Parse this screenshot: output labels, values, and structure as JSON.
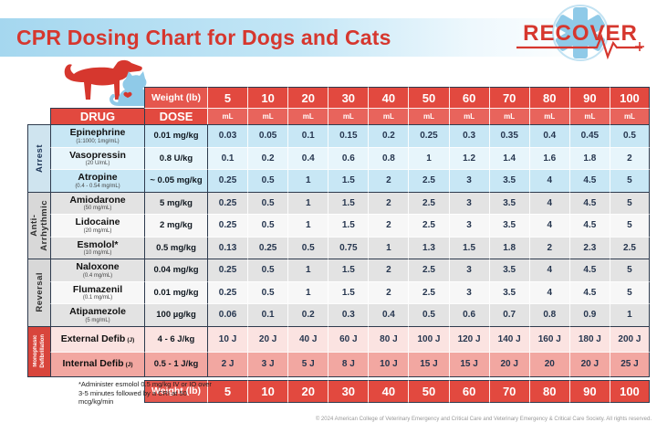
{
  "header": {
    "title": "CPR Dosing Chart for Dogs and Cats"
  },
  "logo": {
    "text": "RECOVER",
    "icon": "star-of-life-with-ekg-line"
  },
  "icons": {
    "dog": "red-dog-silhouette",
    "cat": "blue-cat-silhouette",
    "heart": "small-red-heart"
  },
  "footnote": {
    "text": "*Administer esmolol 0.5 mg/kg IV or IO over 3-5 minutes followed by a CRI at 50 mcg/kg/min"
  },
  "copyright": {
    "text": "© 2024 American College of Veterinary Emergency and Critical Care and Veterinary Emergency & Critical Care Society. All rights reserved."
  },
  "colors": {
    "title_red": "#d6372e",
    "header_red": "#e2493f",
    "unit_row_red": "#e8645c",
    "row_blue_dark": "#c8e7f5",
    "row_blue_light": "#e7f5fb",
    "row_gray_dark": "#e3e3e3",
    "row_gray_light": "#f7f7f7",
    "defib_pink_light": "#fbe3e1",
    "defib_pink_dark": "#f2a7a1",
    "section_red": "#d8453c",
    "logo_blue": "#8fcae8",
    "border_dark": "#2e3b4e"
  },
  "chart_data": {
    "type": "table",
    "title": "CPR Dosing Chart for Dogs and Cats",
    "weight_header_label": "Weight (lb)",
    "weights_lb": [
      "5",
      "10",
      "20",
      "30",
      "40",
      "50",
      "60",
      "70",
      "80",
      "90",
      "100"
    ],
    "drug_col_header": "DRUG",
    "dose_col_header": "DOSE",
    "unit_label": "mL",
    "sections": [
      {
        "name": "Arrest",
        "label_lines": [
          "Arrest"
        ],
        "theme": "blue",
        "rows": [
          {
            "drug": "Epinephrine",
            "concentration": "(1:1000; 1mg/mL)",
            "dose": "0.01 mg/kg",
            "values": [
              "0.03",
              "0.05",
              "0.1",
              "0.15",
              "0.2",
              "0.25",
              "0.3",
              "0.35",
              "0.4",
              "0.45",
              "0.5"
            ]
          },
          {
            "drug": "Vasopressin",
            "concentration": "(20 U/mL)",
            "dose": "0.8 U/kg",
            "values": [
              "0.1",
              "0.2",
              "0.4",
              "0.6",
              "0.8",
              "1",
              "1.2",
              "1.4",
              "1.6",
              "1.8",
              "2"
            ]
          },
          {
            "drug": "Atropine",
            "concentration": "(0.4 - 0.54 mg/mL)",
            "dose": "~ 0.05 mg/kg",
            "values": [
              "0.25",
              "0.5",
              "1",
              "1.5",
              "2",
              "2.5",
              "3",
              "3.5",
              "4",
              "4.5",
              "5"
            ]
          }
        ]
      },
      {
        "name": "Anti-Arrhythmic",
        "label_lines": [
          "Anti-",
          "Arrhythmic"
        ],
        "theme": "gray",
        "rows": [
          {
            "drug": "Amiodarone",
            "concentration": "(50 mg/mL)",
            "dose": "5 mg/kg",
            "values": [
              "0.25",
              "0.5",
              "1",
              "1.5",
              "2",
              "2.5",
              "3",
              "3.5",
              "4",
              "4.5",
              "5"
            ]
          },
          {
            "drug": "Lidocaine",
            "concentration": "(20 mg/mL)",
            "dose": "2 mg/kg",
            "values": [
              "0.25",
              "0.5",
              "1",
              "1.5",
              "2",
              "2.5",
              "3",
              "3.5",
              "4",
              "4.5",
              "5"
            ]
          },
          {
            "drug": "Esmolol*",
            "concentration": "(10 mg/mL)",
            "dose": "0.5 mg/kg",
            "values": [
              "0.13",
              "0.25",
              "0.5",
              "0.75",
              "1",
              "1.3",
              "1.5",
              "1.8",
              "2",
              "2.3",
              "2.5"
            ]
          }
        ]
      },
      {
        "name": "Reversal",
        "label_lines": [
          "Reversal"
        ],
        "theme": "gray",
        "rows": [
          {
            "drug": "Naloxone",
            "concentration": "(0.4 mg/mL)",
            "dose": "0.04 mg/kg",
            "values": [
              "0.25",
              "0.5",
              "1",
              "1.5",
              "2",
              "2.5",
              "3",
              "3.5",
              "4",
              "4.5",
              "5"
            ]
          },
          {
            "drug": "Flumazenil",
            "concentration": "(0.1 mg/mL)",
            "dose": "0.01 mg/kg",
            "values": [
              "0.25",
              "0.5",
              "1",
              "1.5",
              "2",
              "2.5",
              "3",
              "3.5",
              "4",
              "4.5",
              "5"
            ]
          },
          {
            "drug": "Atipamezole",
            "concentration": "(5 mg/mL)",
            "dose": "100 µg/kg",
            "values": [
              "0.06",
              "0.1",
              "0.2",
              "0.3",
              "0.4",
              "0.5",
              "0.6",
              "0.7",
              "0.8",
              "0.9",
              "1"
            ]
          }
        ]
      },
      {
        "name": "Monophasic Defibrillation",
        "label_lines": [
          "Monophasic",
          "Defibrillation"
        ],
        "theme": "red",
        "rows": [
          {
            "drug": "External Defib",
            "name_suffix": "(J)",
            "dose": "4 - 6 J/kg",
            "values": [
              "10 J",
              "20 J",
              "40 J",
              "60 J",
              "80 J",
              "100 J",
              "120 J",
              "140 J",
              "160 J",
              "180 J",
              "200 J"
            ]
          },
          {
            "drug": "Internal Defib",
            "name_suffix": "(J)",
            "dose": "0.5 - 1 J/kg",
            "values": [
              "2 J",
              "3 J",
              "5 J",
              "8 J",
              "10 J",
              "15 J",
              "15 J",
              "20 J",
              "20",
              "20 J",
              "25 J"
            ]
          }
        ]
      }
    ],
    "footer_weight_row": {
      "label": "Weight (lb)",
      "values": [
        "5",
        "10",
        "20",
        "30",
        "40",
        "50",
        "60",
        "70",
        "80",
        "90",
        "100"
      ]
    }
  }
}
